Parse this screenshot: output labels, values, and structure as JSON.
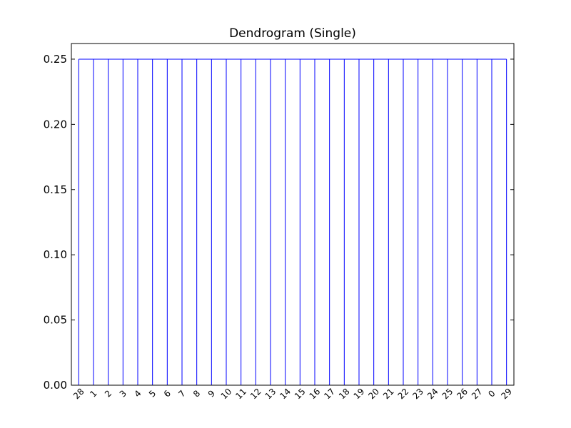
{
  "chart_data": {
    "type": "dendrogram",
    "title": "Dendrogram (Single)",
    "xlabel": "",
    "ylabel": "",
    "ylim": [
      0.0,
      0.25
    ],
    "yticks": [
      "0.00",
      "0.05",
      "0.10",
      "0.15",
      "0.20",
      "0.25"
    ],
    "ytick_values": [
      0.0,
      0.05,
      0.1,
      0.15,
      0.2,
      0.25
    ],
    "leaves": [
      "28",
      "1",
      "2",
      "3",
      "4",
      "5",
      "6",
      "7",
      "8",
      "9",
      "10",
      "11",
      "12",
      "13",
      "14",
      "15",
      "16",
      "17",
      "18",
      "19",
      "20",
      "21",
      "22",
      "23",
      "24",
      "25",
      "26",
      "27",
      "0",
      "29"
    ],
    "merge_height": 0.25,
    "link_color": "#0000ff",
    "grid": false
  }
}
